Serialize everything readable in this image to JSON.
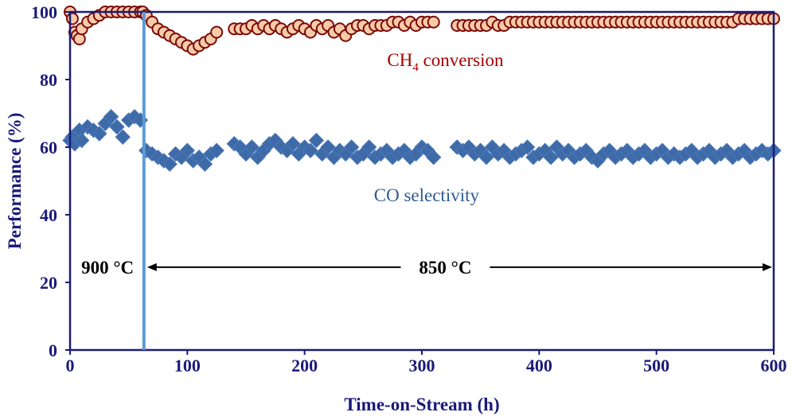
{
  "chart_data": {
    "type": "scatter",
    "xlabel": "Time-on-Stream (h)",
    "ylabel": "Performance (%)",
    "xlim": [
      0,
      600
    ],
    "ylim": [
      0,
      100
    ],
    "xticks": [
      0,
      100,
      200,
      300,
      400,
      500,
      600
    ],
    "yticks": [
      0,
      20,
      40,
      60,
      80,
      100
    ],
    "grid": false,
    "colors": {
      "axis": "#1a1a7a",
      "ch4_fill": "#f8cba8",
      "ch4_edge": "#7b0a0a",
      "ch4_label": "#a50000",
      "co_fill": "#3e6aa8",
      "co_label": "#2e5a8f",
      "divider": "#5b9bd5"
    },
    "series": [
      {
        "name": "CH4 conversion",
        "label_main": "CH",
        "label_sub": "4",
        "label_rest": " conversion",
        "marker": "circle",
        "x": [
          0,
          2,
          4,
          6,
          8,
          10,
          15,
          20,
          25,
          30,
          35,
          40,
          45,
          50,
          55,
          60,
          62,
          65,
          70,
          75,
          80,
          85,
          90,
          95,
          100,
          105,
          110,
          115,
          120,
          125,
          140,
          145,
          150,
          155,
          160,
          165,
          170,
          175,
          180,
          185,
          190,
          195,
          200,
          205,
          210,
          215,
          220,
          225,
          230,
          235,
          240,
          245,
          250,
          255,
          260,
          265,
          270,
          275,
          280,
          285,
          290,
          295,
          300,
          305,
          310,
          330,
          335,
          340,
          345,
          350,
          355,
          360,
          365,
          370,
          375,
          380,
          385,
          390,
          395,
          400,
          405,
          410,
          415,
          420,
          425,
          430,
          435,
          440,
          445,
          450,
          455,
          460,
          465,
          470,
          475,
          480,
          485,
          490,
          495,
          500,
          505,
          510,
          515,
          520,
          525,
          530,
          535,
          540,
          545,
          550,
          555,
          560,
          565,
          570,
          575,
          580,
          585,
          590,
          595,
          600
        ],
        "y": [
          100,
          98,
          94,
          93,
          92,
          95,
          97,
          98,
          99,
          100,
          100,
          100,
          100,
          100,
          100,
          100,
          100,
          99,
          97,
          95,
          94,
          93,
          92,
          91,
          90,
          89,
          90,
          91,
          92,
          94,
          95,
          95,
          95,
          96,
          95,
          96,
          95,
          96,
          95,
          94,
          95,
          96,
          95,
          94,
          96,
          95,
          96,
          94,
          95,
          93,
          95,
          96,
          96,
          95,
          96,
          96,
          96,
          97,
          97,
          96,
          97,
          96,
          97,
          97,
          97,
          96,
          96,
          96,
          96,
          96,
          96,
          97,
          96,
          96,
          97,
          97,
          97,
          97,
          97,
          97,
          97,
          97,
          97,
          97,
          97,
          97,
          97,
          97,
          97,
          97,
          97,
          97,
          97,
          97,
          97,
          97,
          97,
          97,
          97,
          97,
          97,
          97,
          97,
          97,
          97,
          97,
          97,
          97,
          97,
          97,
          97,
          97,
          97,
          98,
          98,
          98,
          98,
          98,
          98,
          98
        ]
      },
      {
        "name": "CO selectivity",
        "label": "CO selectivity",
        "marker": "diamond",
        "x": [
          0,
          2,
          4,
          6,
          8,
          10,
          15,
          20,
          25,
          30,
          35,
          40,
          45,
          50,
          55,
          60,
          65,
          70,
          75,
          80,
          85,
          90,
          95,
          100,
          105,
          110,
          115,
          120,
          125,
          140,
          145,
          150,
          155,
          160,
          165,
          170,
          175,
          180,
          185,
          190,
          195,
          200,
          205,
          210,
          215,
          220,
          225,
          230,
          235,
          240,
          245,
          250,
          255,
          260,
          265,
          270,
          275,
          280,
          285,
          290,
          295,
          300,
          305,
          310,
          330,
          335,
          340,
          345,
          350,
          355,
          360,
          365,
          370,
          375,
          380,
          385,
          390,
          395,
          400,
          405,
          410,
          415,
          420,
          425,
          430,
          435,
          440,
          445,
          450,
          455,
          460,
          465,
          470,
          475,
          480,
          485,
          490,
          495,
          500,
          505,
          510,
          515,
          520,
          525,
          530,
          535,
          540,
          545,
          550,
          555,
          560,
          565,
          570,
          575,
          580,
          585,
          590,
          595,
          600
        ],
        "y": [
          62,
          63,
          61,
          64,
          65,
          62,
          66,
          65,
          64,
          67,
          69,
          66,
          63,
          68,
          69,
          68,
          59,
          58,
          57,
          56,
          55,
          58,
          57,
          59,
          56,
          57,
          55,
          58,
          59,
          61,
          60,
          58,
          60,
          57,
          59,
          61,
          62,
          60,
          59,
          61,
          58,
          60,
          59,
          62,
          58,
          60,
          57,
          59,
          58,
          60,
          57,
          58,
          60,
          57,
          58,
          59,
          57,
          58,
          59,
          57,
          58,
          60,
          59,
          57,
          60,
          59,
          60,
          58,
          59,
          57,
          60,
          58,
          59,
          57,
          58,
          59,
          60,
          57,
          58,
          59,
          57,
          60,
          58,
          59,
          57,
          58,
          59,
          57,
          56,
          58,
          59,
          57,
          58,
          59,
          57,
          58,
          59,
          57,
          58,
          59,
          57,
          58,
          57,
          58,
          59,
          57,
          58,
          59,
          57,
          58,
          59,
          57,
          58,
          59,
          57,
          58,
          59,
          58,
          59
        ]
      }
    ],
    "annotations": {
      "temp_left": "900 °C",
      "temp_right": "850 °C",
      "divider_x": 63
    }
  }
}
